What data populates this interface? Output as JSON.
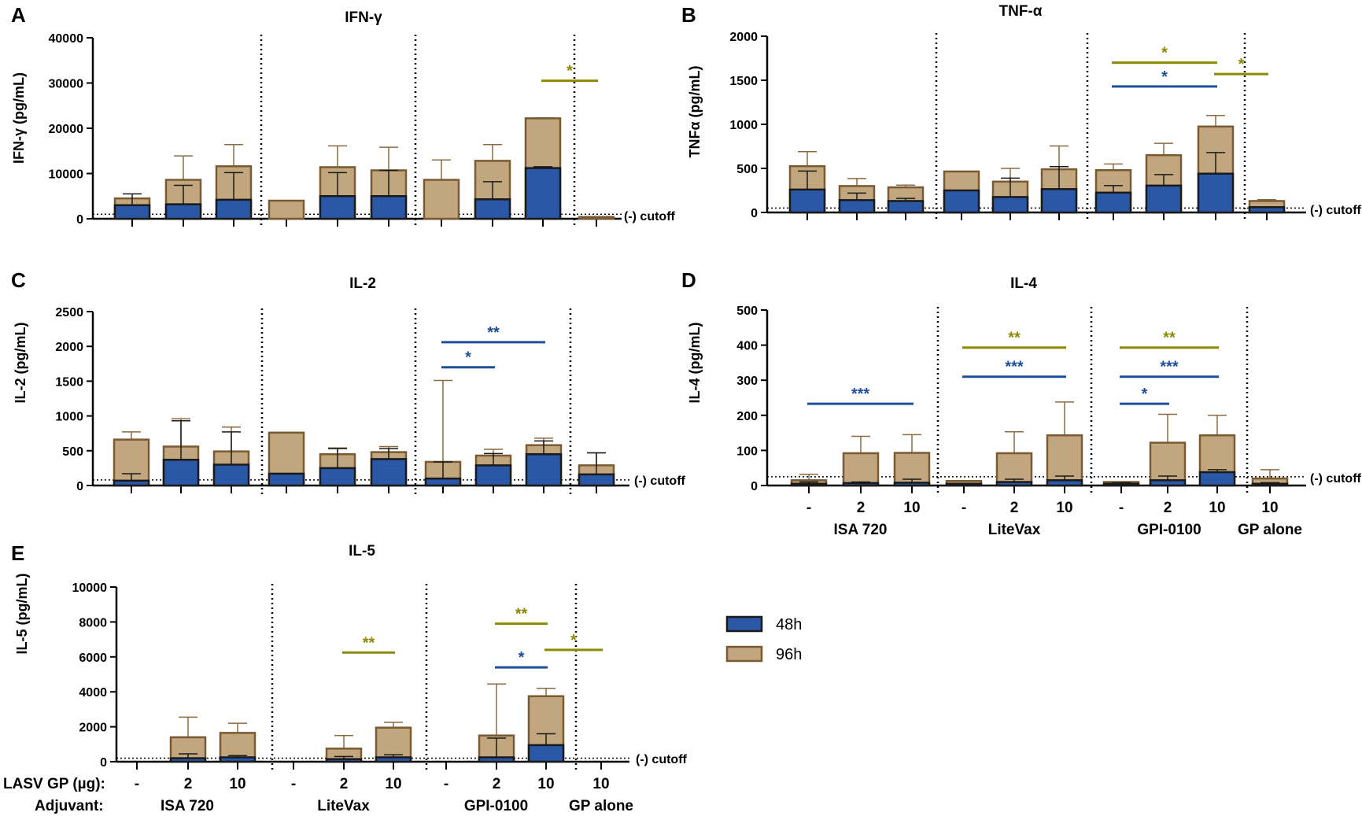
{
  "legend": {
    "items": [
      {
        "label": "48h",
        "color": "#2b57a7"
      },
      {
        "label": "96h",
        "color": "#c2a67e"
      }
    ],
    "border_color": "#7a5a32"
  },
  "colors": {
    "sig_olive": "#8c8a00",
    "sig_blue": "#1f4e9c",
    "err": "#8a6a40"
  },
  "cutoff_label": "(-) cutoff",
  "x_axis": {
    "row_labels": [
      "LASV GP (µg):",
      "Adjuvant:"
    ],
    "doses": [
      "-",
      "2",
      "10",
      "-",
      "2",
      "10",
      "-",
      "2",
      "10",
      "10"
    ],
    "adjuvants": [
      "ISA 720",
      "LiteVax",
      "GPI-0100",
      "GP alone"
    ]
  },
  "chart_data": [
    {
      "panel": "A",
      "type": "bar",
      "title": "IFN-γ",
      "ylabel": "IFN-γ (pg/mL)",
      "ylim": [
        0,
        40000
      ],
      "yticks": [
        0,
        10000,
        20000,
        30000,
        40000
      ],
      "cutoff": 1000,
      "show_dose_labels": false,
      "categories": [
        "ISA 720 -",
        "ISA 720 2",
        "ISA 720 10",
        "LiteVax -",
        "LiteVax 2",
        "LiteVax 10",
        "GPI-0100 -",
        "GPI-0100 2",
        "GPI-0100 10",
        "GP alone 10"
      ],
      "series": [
        {
          "name": "48h",
          "values": [
            3000,
            3200,
            4200,
            0,
            5000,
            5000,
            0,
            4300,
            11200,
            0
          ],
          "errors": [
            5500,
            7400,
            10200,
            0,
            10200,
            10700,
            0,
            8200,
            11500,
            0
          ]
        },
        {
          "name": "96h",
          "values": [
            4500,
            8600,
            11600,
            4000,
            11400,
            10700,
            8600,
            12800,
            22200,
            400
          ],
          "errors": [
            4500,
            13900,
            16400,
            4000,
            16100,
            15800,
            13000,
            16400,
            22300,
            400
          ]
        }
      ],
      "significance": [
        {
          "from": 8,
          "to": 9,
          "label": "*",
          "color": "olive",
          "y": 30500
        }
      ]
    },
    {
      "panel": "B",
      "type": "bar",
      "title": "TNF-α",
      "ylabel": "TNFα (pg/mL)",
      "ylim": [
        0,
        2000
      ],
      "yticks": [
        0,
        500,
        1000,
        1500,
        2000
      ],
      "cutoff": 50,
      "show_dose_labels": false,
      "categories": [
        "ISA 720 -",
        "ISA 720 2",
        "ISA 720 10",
        "LiteVax -",
        "LiteVax 2",
        "LiteVax 10",
        "GPI-0100 -",
        "GPI-0100 2",
        "GPI-0100 10",
        "GP alone 10"
      ],
      "series": [
        {
          "name": "48h",
          "values": [
            260,
            140,
            130,
            250,
            175,
            265,
            225,
            305,
            440,
            60
          ],
          "errors": [
            470,
            220,
            160,
            250,
            390,
            520,
            305,
            430,
            680,
            60
          ]
        },
        {
          "name": "96h",
          "values": [
            525,
            300,
            285,
            465,
            350,
            490,
            480,
            650,
            975,
            130
          ],
          "errors": [
            690,
            385,
            310,
            465,
            500,
            755,
            550,
            785,
            1100,
            145
          ]
        }
      ],
      "significance": [
        {
          "from": 6,
          "to": 8,
          "label": "*",
          "color": "olive",
          "y": 1700
        },
        {
          "from": 6,
          "to": 8,
          "label": "*",
          "color": "blue",
          "y": 1430
        },
        {
          "from": 8,
          "to": 9,
          "label": "*",
          "color": "olive",
          "y": 1570
        }
      ]
    },
    {
      "panel": "C",
      "type": "bar",
      "title": "IL-2",
      "ylabel": "IL-2 (pg/mL)",
      "ylim": [
        0,
        2500
      ],
      "yticks": [
        0,
        500,
        1000,
        1500,
        2000,
        2500
      ],
      "cutoff": 80,
      "show_dose_labels": false,
      "categories": [
        "ISA 720 -",
        "ISA 720 2",
        "ISA 720 10",
        "LiteVax -",
        "LiteVax 2",
        "LiteVax 10",
        "GPI-0100 -",
        "GPI-0100 2",
        "GPI-0100 10",
        "GP alone 10"
      ],
      "series": [
        {
          "name": "48h",
          "values": [
            70,
            370,
            300,
            170,
            250,
            380,
            100,
            290,
            450,
            160
          ],
          "errors": [
            170,
            930,
            770,
            170,
            530,
            530,
            340,
            460,
            640,
            470
          ]
        },
        {
          "name": "96h",
          "values": [
            660,
            560,
            490,
            760,
            450,
            480,
            340,
            430,
            580,
            290
          ],
          "errors": [
            770,
            960,
            840,
            760,
            540,
            560,
            1510,
            520,
            680,
            470
          ]
        }
      ],
      "significance": [
        {
          "from": 6,
          "to": 7,
          "label": "*",
          "color": "blue",
          "y": 1700
        },
        {
          "from": 6,
          "to": 8,
          "label": "**",
          "color": "blue",
          "y": 2060
        }
      ]
    },
    {
      "panel": "D",
      "type": "bar",
      "title": "IL-4",
      "ylabel": "IL-4 (pg/mL)",
      "ylim": [
        0,
        500
      ],
      "yticks": [
        0,
        100,
        200,
        300,
        400,
        500
      ],
      "cutoff": 25,
      "show_dose_labels": true,
      "categories": [
        "ISA 720 -",
        "ISA 720 2",
        "ISA 720 10",
        "LiteVax -",
        "LiteVax 2",
        "LiteVax 10",
        "GPI-0100 -",
        "GPI-0100 2",
        "GPI-0100 10",
        "GP alone 10"
      ],
      "series": [
        {
          "name": "48h",
          "values": [
            5,
            7,
            8,
            5,
            10,
            15,
            5,
            15,
            38,
            5
          ],
          "errors": [
            10,
            10,
            18,
            5,
            18,
            27,
            8,
            27,
            45,
            8
          ]
        },
        {
          "name": "96h",
          "values": [
            15,
            92,
            93,
            13,
            92,
            143,
            10,
            122,
            143,
            20
          ],
          "errors": [
            32,
            140,
            145,
            13,
            153,
            238,
            10,
            203,
            200,
            45
          ]
        }
      ],
      "significance": [
        {
          "from": 0,
          "to": 2,
          "label": "***",
          "color": "blue",
          "y": 233
        },
        {
          "from": 3,
          "to": 5,
          "label": "**",
          "color": "olive",
          "y": 393
        },
        {
          "from": 3,
          "to": 5,
          "label": "***",
          "color": "blue",
          "y": 310
        },
        {
          "from": 6,
          "to": 8,
          "label": "**",
          "color": "olive",
          "y": 393
        },
        {
          "from": 6,
          "to": 8,
          "label": "***",
          "color": "blue",
          "y": 310
        },
        {
          "from": 6,
          "to": 7,
          "label": "*",
          "color": "blue",
          "y": 233
        }
      ]
    },
    {
      "panel": "E",
      "type": "bar",
      "title": "IL-5",
      "ylabel": "IL-5 (pg/mL)",
      "ylim": [
        0,
        10000
      ],
      "yticks": [
        0,
        2000,
        4000,
        6000,
        8000,
        10000
      ],
      "cutoff": 200,
      "show_dose_labels": true,
      "categories": [
        "ISA 720 -",
        "ISA 720 2",
        "ISA 720 10",
        "LiteVax -",
        "LiteVax 2",
        "LiteVax 10",
        "GPI-0100 -",
        "GPI-0100 2",
        "GPI-0100 10",
        "GP alone 10"
      ],
      "series": [
        {
          "name": "48h",
          "values": [
            0,
            200,
            250,
            0,
            150,
            250,
            0,
            250,
            950,
            0
          ],
          "errors": [
            0,
            450,
            350,
            0,
            300,
            400,
            0,
            1350,
            1600,
            0
          ]
        },
        {
          "name": "96h",
          "values": [
            0,
            1400,
            1650,
            0,
            750,
            1950,
            0,
            1500,
            3750,
            0
          ],
          "errors": [
            0,
            2550,
            2200,
            0,
            1500,
            2250,
            0,
            4450,
            4200,
            0
          ]
        }
      ],
      "significance": [
        {
          "from": 4,
          "to": 5,
          "label": "**",
          "color": "olive",
          "y": 6250
        },
        {
          "from": 7,
          "to": 8,
          "label": "**",
          "color": "olive",
          "y": 7900
        },
        {
          "from": 7,
          "to": 8,
          "label": "*",
          "color": "blue",
          "y": 5400
        },
        {
          "from": 8,
          "to": 9,
          "label": "*",
          "color": "olive",
          "y": 6400
        }
      ]
    }
  ]
}
